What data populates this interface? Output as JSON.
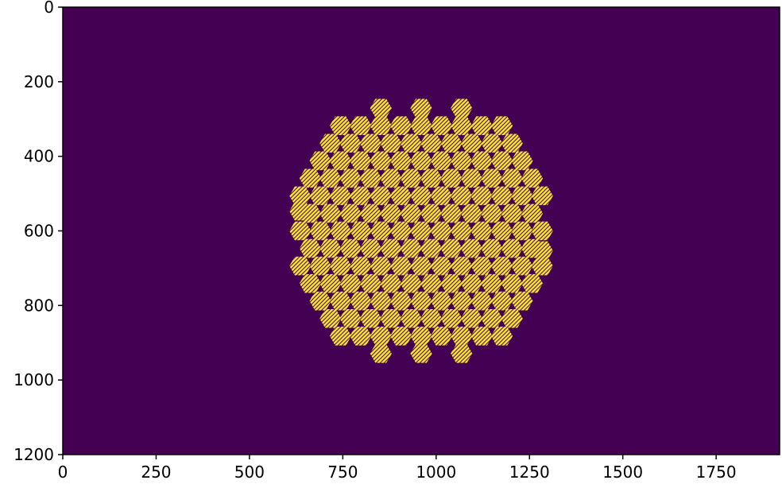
{
  "chart_data": {
    "type": "heatmap",
    "title": "",
    "xlabel": "",
    "ylabel": "",
    "xlim": [
      0,
      1920
    ],
    "ylim": [
      1200,
      0
    ],
    "y_axis_inverted": true,
    "grid": false,
    "legend": "none",
    "colors": {
      "background": "#440154",
      "cell": "#fde725",
      "hatch": "#440154"
    },
    "x_ticks": [
      0,
      250,
      500,
      750,
      1000,
      1250,
      1500,
      1750
    ],
    "x_tick_labels": [
      "0",
      "250",
      "500",
      "750",
      "1000",
      "1250",
      "1500",
      "1750"
    ],
    "y_ticks": [
      0,
      200,
      400,
      600,
      800,
      1000,
      1200
    ],
    "y_tick_labels": [
      "0",
      "200",
      "400",
      "600",
      "800",
      "1000",
      "1200"
    ],
    "hex_grid": {
      "center": [
        960,
        600
      ],
      "ring_spacing": 54,
      "hex_radius": 29,
      "rings": 6
    },
    "hex_centers": [
      [
        960,
        600
      ],
      [
        1014,
        600
      ],
      [
        987,
        647
      ],
      [
        933,
        647
      ],
      [
        906,
        600
      ],
      [
        933,
        553
      ],
      [
        987,
        553
      ],
      [
        1068,
        600
      ],
      [
        1041,
        647
      ],
      [
        1014,
        694
      ],
      [
        960,
        694
      ],
      [
        906,
        694
      ],
      [
        879,
        647
      ],
      [
        852,
        600
      ],
      [
        879,
        553
      ],
      [
        906,
        506
      ],
      [
        960,
        506
      ],
      [
        1014,
        506
      ],
      [
        1041,
        553
      ],
      [
        1122,
        600
      ],
      [
        1095,
        647
      ],
      [
        1068,
        694
      ],
      [
        1041,
        741
      ],
      [
        987,
        741
      ],
      [
        933,
        741
      ],
      [
        879,
        741
      ],
      [
        852,
        694
      ],
      [
        825,
        647
      ],
      [
        798,
        600
      ],
      [
        825,
        553
      ],
      [
        852,
        506
      ],
      [
        879,
        459
      ],
      [
        933,
        459
      ],
      [
        987,
        459
      ],
      [
        1041,
        459
      ],
      [
        1068,
        506
      ],
      [
        1095,
        553
      ],
      [
        1176,
        600
      ],
      [
        1149,
        647
      ],
      [
        1122,
        694
      ],
      [
        1095,
        741
      ],
      [
        1068,
        788
      ],
      [
        1014,
        788
      ],
      [
        960,
        788
      ],
      [
        906,
        788
      ],
      [
        852,
        788
      ],
      [
        825,
        741
      ],
      [
        798,
        694
      ],
      [
        771,
        647
      ],
      [
        744,
        600
      ],
      [
        771,
        553
      ],
      [
        798,
        506
      ],
      [
        825,
        459
      ],
      [
        852,
        412
      ],
      [
        906,
        412
      ],
      [
        960,
        412
      ],
      [
        1014,
        412
      ],
      [
        1068,
        412
      ],
      [
        1095,
        459
      ],
      [
        1122,
        506
      ],
      [
        1149,
        553
      ],
      [
        1230,
        600
      ],
      [
        1203,
        647
      ],
      [
        1176,
        694
      ],
      [
        1149,
        741
      ],
      [
        1122,
        788
      ],
      [
        1095,
        835
      ],
      [
        1041,
        835
      ],
      [
        987,
        835
      ],
      [
        933,
        835
      ],
      [
        879,
        835
      ],
      [
        825,
        835
      ],
      [
        798,
        788
      ],
      [
        771,
        741
      ],
      [
        744,
        694
      ],
      [
        717,
        647
      ],
      [
        690,
        600
      ],
      [
        717,
        553
      ],
      [
        744,
        506
      ],
      [
        771,
        459
      ],
      [
        798,
        412
      ],
      [
        825,
        365
      ],
      [
        879,
        365
      ],
      [
        933,
        365
      ],
      [
        987,
        365
      ],
      [
        1041,
        365
      ],
      [
        1095,
        365
      ],
      [
        1122,
        412
      ],
      [
        1149,
        459
      ],
      [
        1176,
        506
      ],
      [
        1203,
        553
      ],
      [
        1284,
        600
      ],
      [
        1257,
        647
      ],
      [
        1230,
        694
      ],
      [
        1203,
        741
      ],
      [
        1176,
        788
      ],
      [
        1149,
        835
      ],
      [
        1122,
        882
      ],
      [
        1068,
        882
      ],
      [
        1014,
        882
      ],
      [
        960,
        882
      ],
      [
        906,
        882
      ],
      [
        852,
        882
      ],
      [
        798,
        882
      ],
      [
        771,
        835
      ],
      [
        744,
        788
      ],
      [
        717,
        741
      ],
      [
        690,
        694
      ],
      [
        663,
        647
      ],
      [
        636,
        600
      ],
      [
        663,
        553
      ],
      [
        690,
        506
      ],
      [
        717,
        459
      ],
      [
        744,
        412
      ],
      [
        771,
        365
      ],
      [
        798,
        318
      ],
      [
        852,
        318
      ],
      [
        906,
        318
      ],
      [
        960,
        318
      ],
      [
        1014,
        318
      ],
      [
        1068,
        318
      ],
      [
        1122,
        318
      ],
      [
        1149,
        365
      ],
      [
        1176,
        412
      ],
      [
        1203,
        459
      ],
      [
        1230,
        506
      ],
      [
        1257,
        553
      ],
      [
        1284,
        506
      ],
      [
        1257,
        459
      ],
      [
        1230,
        412
      ],
      [
        1203,
        365
      ],
      [
        1284,
        694
      ],
      [
        1257,
        741
      ],
      [
        1230,
        788
      ],
      [
        1203,
        835
      ],
      [
        636,
        506
      ],
      [
        663,
        459
      ],
      [
        690,
        412
      ],
      [
        717,
        365
      ],
      [
        636,
        694
      ],
      [
        663,
        741
      ],
      [
        690,
        788
      ],
      [
        717,
        835
      ],
      [
        1176,
        318
      ],
      [
        1176,
        882
      ],
      [
        744,
        318
      ],
      [
        744,
        882
      ],
      [
        636,
        547
      ],
      [
        1284,
        653
      ],
      [
        1068,
        271
      ],
      [
        960,
        271
      ],
      [
        852,
        271
      ],
      [
        1068,
        929
      ],
      [
        960,
        929
      ],
      [
        852,
        929
      ]
    ]
  }
}
